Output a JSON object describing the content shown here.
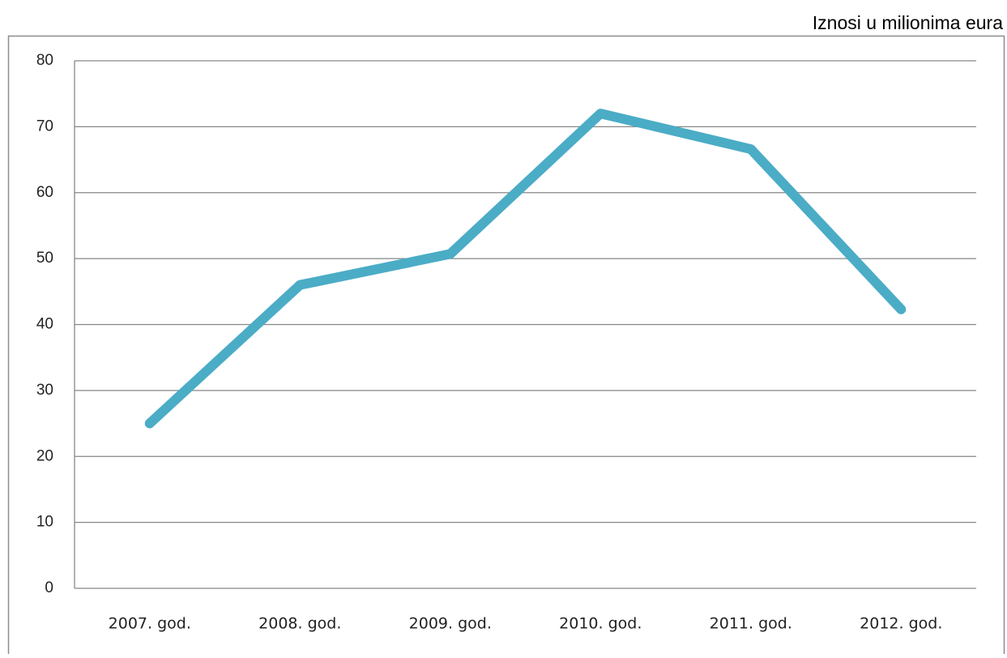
{
  "chart_data": {
    "type": "line",
    "annotation": "Iznosi u milionima eura",
    "categories": [
      "2007. god.",
      "2008. god.",
      "2009. god.",
      "2010. god.",
      "2011. god.",
      "2012. god."
    ],
    "series": [
      {
        "color": "#4bacc6",
        "values": [
          25,
          46,
          50.7,
          72,
          66.6,
          42.3
        ]
      }
    ],
    "ylim": [
      0,
      80
    ],
    "yticks": [
      0,
      10,
      20,
      30,
      40,
      50,
      60,
      70,
      80
    ],
    "grid": true
  }
}
